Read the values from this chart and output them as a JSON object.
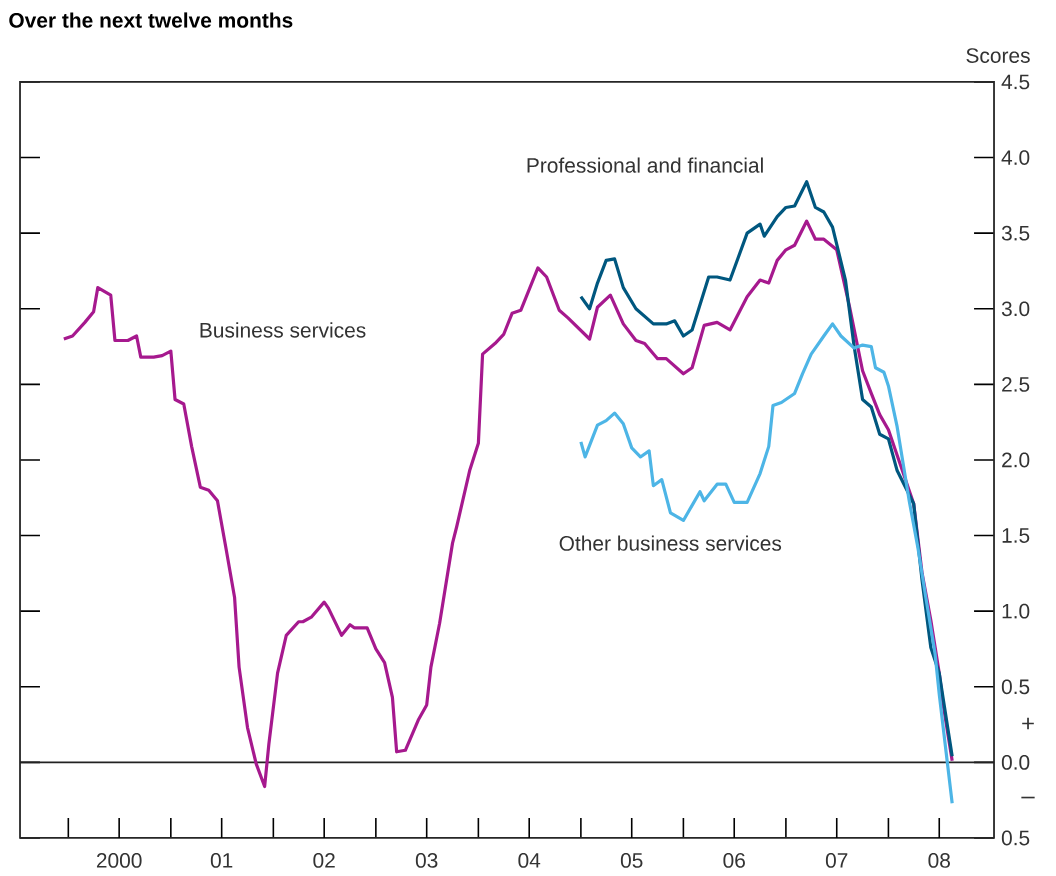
{
  "chart_data": {
    "type": "line",
    "title": "Over the next twelve months",
    "ylabel": "Scores",
    "annotations": [
      "+",
      "–"
    ],
    "xlim": [
      "1999-07-13",
      "2009-01-12"
    ],
    "ylim": [
      -0.5,
      4.5
    ],
    "xticks": [
      {
        "value": "2000-01-01",
        "label": null
      },
      {
        "value": "2000-07-01",
        "label": "2000"
      },
      {
        "value": "2001-01-01",
        "label": null
      },
      {
        "value": "2001-07-01",
        "label": "01"
      },
      {
        "value": "2002-01-01",
        "label": null
      },
      {
        "value": "2002-07-01",
        "label": "02"
      },
      {
        "value": "2003-01-01",
        "label": null
      },
      {
        "value": "2003-07-01",
        "label": "03"
      },
      {
        "value": "2004-01-01",
        "label": null
      },
      {
        "value": "2004-07-01",
        "label": "04"
      },
      {
        "value": "2005-01-01",
        "label": null
      },
      {
        "value": "2005-07-01",
        "label": "05"
      },
      {
        "value": "2006-01-01",
        "label": null
      },
      {
        "value": "2006-07-01",
        "label": "06"
      },
      {
        "value": "2007-01-01",
        "label": null
      },
      {
        "value": "2007-07-01",
        "label": "07"
      },
      {
        "value": "2008-01-01",
        "label": null
      },
      {
        "value": "2008-07-01",
        "label": "08"
      }
    ],
    "yticks": [
      {
        "value": -0.5,
        "label": "0.5"
      },
      {
        "value": 0,
        "label": "0.0"
      },
      {
        "value": 0.5,
        "label": "0.5"
      },
      {
        "value": 1,
        "label": "1.0"
      },
      {
        "value": 1.5,
        "label": "1.5"
      },
      {
        "value": 2,
        "label": "2.0"
      },
      {
        "value": 2.5,
        "label": "2.5"
      },
      {
        "value": 3,
        "label": "3.0"
      },
      {
        "value": 3.5,
        "label": "3.5"
      },
      {
        "value": 4,
        "label": "4.0"
      },
      {
        "value": 4.5,
        "label": "4.5"
      }
    ],
    "ref_lines": [
      {
        "axis": "y",
        "value": 0,
        "color": "#222222"
      }
    ],
    "series": [
      {
        "name": "Business services",
        "color": "#a6198e",
        "x": [
          "1999-12-16",
          "2000-01-16",
          "2000-03-01",
          "2000-04-01",
          "2000-04-16",
          "2000-06-01",
          "2000-06-16",
          "2000-08-01",
          "2000-09-01",
          "2000-09-16",
          "2000-11-01",
          "2000-12-01",
          "2001-01-01",
          "2001-01-16",
          "2001-02-16",
          "2001-03-16",
          "2001-04-16",
          "2001-05-16",
          "2001-06-16",
          "2001-07-16",
          "2001-08-16",
          "2001-09-01",
          "2001-10-01",
          "2001-11-01",
          "2001-12-01",
          "2001-12-16",
          "2002-01-16",
          "2002-02-16",
          "2002-04-01",
          "2002-04-16",
          "2002-05-16",
          "2002-07-01",
          "2002-07-16",
          "2002-09-01",
          "2002-10-01",
          "2002-10-16",
          "2002-12-01",
          "2003-01-01",
          "2003-02-01",
          "2003-03-01",
          "2003-03-16",
          "2003-04-16",
          "2003-06-01",
          "2003-07-01",
          "2003-07-16",
          "2003-08-16",
          "2003-10-01",
          "2003-10-16",
          "2003-12-01",
          "2004-01-01",
          "2004-01-16",
          "2004-03-01",
          "2004-04-01",
          "2004-05-01",
          "2004-06-01",
          "2004-08-01",
          "2004-09-01",
          "2004-10-16",
          "2004-11-16",
          "2005-02-01",
          "2005-03-01",
          "2005-04-16",
          "2005-06-01",
          "2005-07-16",
          "2005-08-16",
          "2005-10-01",
          "2005-11-01",
          "2006-01-01",
          "2006-02-01",
          "2006-03-16",
          "2006-05-01",
          "2006-06-16",
          "2006-08-16",
          "2006-10-01",
          "2006-11-01",
          "2006-12-01",
          "2007-01-01",
          "2007-02-01",
          "2007-03-16",
          "2007-04-16",
          "2007-05-16",
          "2007-07-01",
          "2007-08-16",
          "2007-10-01",
          "2007-11-01",
          "2007-12-01",
          "2008-01-01",
          "2008-02-16",
          "2008-04-01",
          "2008-05-01",
          "2008-06-01",
          "2008-07-01",
          "2008-07-16",
          "2008-08-16"
        ],
        "values": [
          2.8,
          2.82,
          2.91,
          2.98,
          3.14,
          3.09,
          2.79,
          2.79,
          2.82,
          2.68,
          2.68,
          2.69,
          2.72,
          2.4,
          2.37,
          2.09,
          1.82,
          1.8,
          1.73,
          1.42,
          1.09,
          0.63,
          0.23,
          -0.01,
          -0.16,
          0.12,
          0.59,
          0.84,
          0.93,
          0.93,
          0.96,
          1.06,
          1.02,
          0.84,
          0.91,
          0.89,
          0.89,
          0.75,
          0.66,
          0.43,
          0.07,
          0.08,
          0.28,
          0.38,
          0.63,
          0.92,
          1.45,
          1.56,
          1.93,
          2.11,
          2.7,
          2.77,
          2.83,
          2.97,
          2.99,
          3.27,
          3.21,
          2.99,
          2.94,
          2.8,
          3.01,
          3.09,
          2.9,
          2.79,
          2.77,
          2.67,
          2.67,
          2.57,
          2.61,
          2.89,
          2.91,
          2.86,
          3.08,
          3.19,
          3.17,
          3.32,
          3.39,
          3.42,
          3.58,
          3.46,
          3.46,
          3.39,
          3.01,
          2.59,
          2.44,
          2.3,
          2.2,
          1.95,
          1.71,
          1.25,
          0.94,
          0.59,
          0.37,
          0.01
        ]
      },
      {
        "name": "Professional and financial",
        "color": "#00577f",
        "x": [
          "2005-01-01",
          "2005-02-01",
          "2005-03-01",
          "2005-04-01",
          "2005-05-01",
          "2005-06-01",
          "2005-07-16",
          "2005-09-16",
          "2005-11-01",
          "2005-12-01",
          "2006-01-01",
          "2006-02-01",
          "2006-04-01",
          "2006-05-01",
          "2006-06-16",
          "2006-08-16",
          "2006-10-01",
          "2006-10-16",
          "2006-12-01",
          "2007-01-01",
          "2007-02-01",
          "2007-03-16",
          "2007-04-16",
          "2007-05-16",
          "2007-06-16",
          "2007-08-01",
          "2007-09-01",
          "2007-10-01",
          "2007-11-01",
          "2007-12-01",
          "2008-01-01",
          "2008-02-01",
          "2008-04-01",
          "2008-05-01",
          "2008-06-01",
          "2008-07-01",
          "2008-07-16",
          "2008-08-16"
        ],
        "values": [
          3.08,
          3.0,
          3.17,
          3.32,
          3.33,
          3.14,
          3.0,
          2.9,
          2.9,
          2.92,
          2.82,
          2.86,
          3.21,
          3.21,
          3.19,
          3.5,
          3.56,
          3.48,
          3.61,
          3.67,
          3.68,
          3.84,
          3.67,
          3.64,
          3.54,
          3.19,
          2.75,
          2.4,
          2.35,
          2.17,
          2.14,
          1.93,
          1.71,
          1.2,
          0.76,
          0.59,
          0.41,
          0.04
        ]
      },
      {
        "name": "Other business services",
        "color": "#4db5e6",
        "x": [
          "2005-01-01",
          "2005-01-16",
          "2005-03-01",
          "2005-04-01",
          "2005-05-01",
          "2005-06-01",
          "2005-07-01",
          "2005-08-01",
          "2005-09-01",
          "2005-09-16",
          "2005-10-16",
          "2005-11-16",
          "2006-01-01",
          "2006-02-01",
          "2006-03-01",
          "2006-03-16",
          "2006-05-01",
          "2006-06-01",
          "2006-07-01",
          "2006-08-16",
          "2006-10-01",
          "2006-11-01",
          "2006-11-16",
          "2006-12-16",
          "2007-02-01",
          "2007-03-01",
          "2007-04-01",
          "2007-05-16",
          "2007-06-16",
          "2007-07-16",
          "2007-09-01",
          "2007-10-01",
          "2007-11-01",
          "2007-11-16",
          "2007-12-16",
          "2008-01-01",
          "2008-02-01",
          "2008-03-16",
          "2008-04-16",
          "2008-05-16",
          "2008-06-16",
          "2008-07-01",
          "2008-08-16"
        ],
        "values": [
          2.12,
          2.02,
          2.23,
          2.26,
          2.31,
          2.24,
          2.08,
          2.02,
          2.06,
          1.83,
          1.87,
          1.65,
          1.6,
          1.7,
          1.79,
          1.73,
          1.84,
          1.84,
          1.72,
          1.72,
          1.91,
          2.09,
          2.36,
          2.38,
          2.44,
          2.57,
          2.7,
          2.82,
          2.9,
          2.82,
          2.74,
          2.76,
          2.75,
          2.61,
          2.58,
          2.49,
          2.22,
          1.73,
          1.42,
          1.07,
          0.72,
          0.45,
          -0.27
        ]
      }
    ]
  }
}
